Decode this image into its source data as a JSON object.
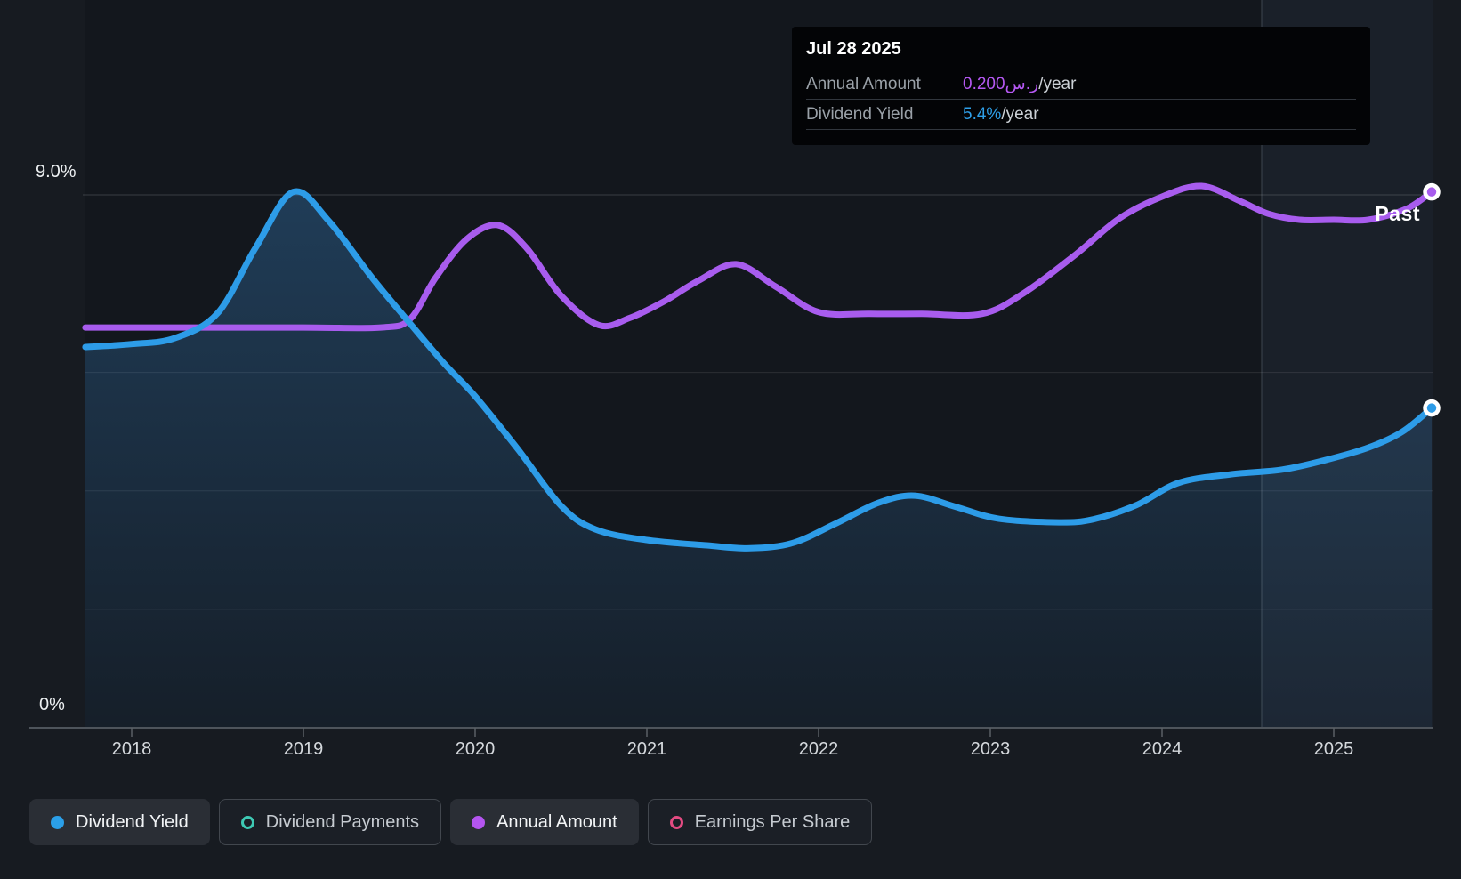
{
  "tooltip": {
    "date": "Jul 28 2025",
    "rows": [
      {
        "label": "Annual Amount",
        "value": "0.200ر.س",
        "suffix": "/year",
        "color": "#b558f2"
      },
      {
        "label": "Dividend Yield",
        "value": "5.4%",
        "suffix": "/year",
        "color": "#2e9fe8"
      }
    ]
  },
  "axis_labels": {
    "y_top": "9.0%",
    "y_bottom": "0%",
    "past": "Past"
  },
  "legend": [
    {
      "label": "Dividend Yield",
      "color": "#2b9fe8",
      "marker": "filled",
      "active": true
    },
    {
      "label": "Dividend Payments",
      "color": "#3ec9b4",
      "marker": "ring",
      "active": false
    },
    {
      "label": "Annual Amount",
      "color": "#b455f0",
      "marker": "filled",
      "active": true
    },
    {
      "label": "Earnings Per Share",
      "color": "#e34b82",
      "marker": "ring",
      "active": false
    }
  ],
  "chart_data": {
    "type": "line",
    "title": "",
    "x_ticks": [
      2018,
      2019,
      2020,
      2021,
      2022,
      2023,
      2024,
      2025
    ],
    "x_range": [
      2017.73,
      2025.58
    ],
    "y_axis": {
      "min": 0,
      "max": 9.0,
      "unit": "%",
      "top_label": "9.0%",
      "bottom_label": "0%",
      "gridlines_pct": [
        2,
        4,
        6,
        8
      ],
      "top_line_pct": 9.0
    },
    "past_region_start": 2024.58,
    "legend_position": "bottom",
    "grid": true,
    "series": [
      {
        "name": "Dividend Yield",
        "color": "#2d9ce8",
        "unit": "percent",
        "area": true,
        "end_marker": true,
        "current_value": "5.4%/year",
        "points": [
          [
            2017.73,
            6.43
          ],
          [
            2018.0,
            6.48
          ],
          [
            2018.25,
            6.58
          ],
          [
            2018.5,
            7.0
          ],
          [
            2018.72,
            8.1
          ],
          [
            2018.94,
            9.05
          ],
          [
            2019.15,
            8.55
          ],
          [
            2019.4,
            7.6
          ],
          [
            2019.6,
            6.9
          ],
          [
            2019.82,
            6.15
          ],
          [
            2020.0,
            5.6
          ],
          [
            2020.25,
            4.7
          ],
          [
            2020.5,
            3.75
          ],
          [
            2020.7,
            3.35
          ],
          [
            2021.0,
            3.17
          ],
          [
            2021.35,
            3.08
          ],
          [
            2021.6,
            3.03
          ],
          [
            2021.85,
            3.12
          ],
          [
            2022.1,
            3.45
          ],
          [
            2022.35,
            3.8
          ],
          [
            2022.56,
            3.92
          ],
          [
            2022.8,
            3.73
          ],
          [
            2023.05,
            3.53
          ],
          [
            2023.4,
            3.47
          ],
          [
            2023.6,
            3.52
          ],
          [
            2023.85,
            3.76
          ],
          [
            2024.1,
            4.14
          ],
          [
            2024.4,
            4.28
          ],
          [
            2024.7,
            4.36
          ],
          [
            2024.95,
            4.52
          ],
          [
            2025.2,
            4.73
          ],
          [
            2025.4,
            5.0
          ],
          [
            2025.57,
            5.4
          ]
        ]
      },
      {
        "name": "Annual Amount",
        "color": "#a85cee",
        "unit": "plotted against left axis (own scale); current value 0.200 SAR/year",
        "area": false,
        "end_marker": true,
        "current_value": "0.200ر.س/year",
        "points": [
          [
            2017.73,
            6.76
          ],
          [
            2018.4,
            6.76
          ],
          [
            2019.0,
            6.76
          ],
          [
            2019.45,
            6.76
          ],
          [
            2019.62,
            6.9
          ],
          [
            2019.77,
            7.6
          ],
          [
            2019.95,
            8.25
          ],
          [
            2020.13,
            8.49
          ],
          [
            2020.3,
            8.1
          ],
          [
            2020.5,
            7.3
          ],
          [
            2020.72,
            6.8
          ],
          [
            2020.9,
            6.92
          ],
          [
            2021.1,
            7.2
          ],
          [
            2021.3,
            7.55
          ],
          [
            2021.52,
            7.83
          ],
          [
            2021.75,
            7.45
          ],
          [
            2022.0,
            7.02
          ],
          [
            2022.3,
            6.99
          ],
          [
            2022.6,
            6.99
          ],
          [
            2022.95,
            6.99
          ],
          [
            2023.2,
            7.35
          ],
          [
            2023.5,
            8.0
          ],
          [
            2023.75,
            8.6
          ],
          [
            2024.0,
            8.97
          ],
          [
            2024.23,
            9.15
          ],
          [
            2024.45,
            8.9
          ],
          [
            2024.62,
            8.68
          ],
          [
            2024.8,
            8.58
          ],
          [
            2025.0,
            8.58
          ],
          [
            2025.2,
            8.58
          ],
          [
            2025.42,
            8.76
          ],
          [
            2025.57,
            9.05
          ]
        ]
      }
    ],
    "hidden_series": [
      "Dividend Payments",
      "Earnings Per Share"
    ]
  }
}
